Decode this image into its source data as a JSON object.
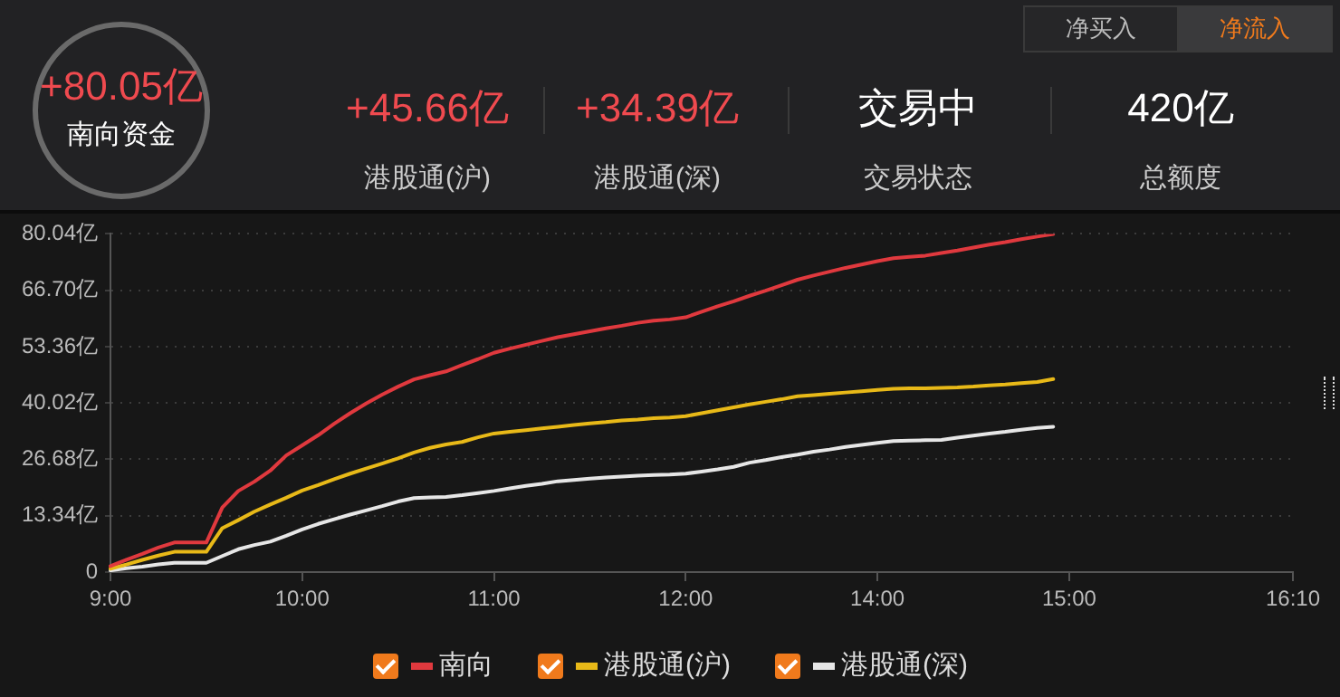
{
  "chart_data": {
    "type": "line",
    "annotations": [
      "+80.05亿",
      "南向资金",
      "+45.66亿",
      "港股通(沪)",
      "+34.39亿",
      "港股通(深)",
      "交易中",
      "交易状态",
      "420亿",
      "总额度",
      "净买入",
      "净流入"
    ],
    "categories": [
      "9:00",
      null,
      null,
      null,
      null,
      null,
      null,
      null,
      null,
      null,
      null,
      null,
      "10:00",
      null,
      null,
      null,
      null,
      null,
      null,
      null,
      null,
      null,
      null,
      null,
      "11:00",
      null,
      null,
      null,
      null,
      null,
      null,
      null,
      null,
      null,
      null,
      null,
      "12:00",
      null,
      null,
      null,
      null,
      null,
      null,
      null,
      null,
      null,
      null,
      null,
      "14:00",
      null,
      null,
      null,
      null,
      null,
      null,
      null,
      null,
      null,
      null,
      null,
      "15:00",
      null,
      null,
      null,
      null,
      null,
      null,
      null,
      null,
      null,
      null,
      null,
      null,
      null,
      "16:10"
    ],
    "ylim": [
      0,
      80.04
    ],
    "yticks": [
      0,
      {
        "value": 13.34,
        "label": "13.34亿"
      },
      {
        "value": 26.68,
        "label": "26.68亿"
      },
      {
        "value": 40.02,
        "label": "40.02亿"
      },
      {
        "value": 53.36,
        "label": "53.36亿"
      },
      {
        "value": 66.7,
        "label": "66.70亿"
      },
      {
        "value": 80.04,
        "label": "80.04亿"
      }
    ],
    "grid": "y",
    "legend": "bottom",
    "marker": "none",
    "line_style": "solid",
    "series": [
      {
        "name": "南向",
        "color": "#e0393e",
        "values": [
          1.4,
          2.9,
          4.3,
          5.8,
          7.0,
          7.0,
          7.0,
          15.3,
          19.2,
          21.4,
          24.0,
          27.6,
          30.0,
          32.4,
          35.1,
          37.6,
          39.9,
          42.0,
          43.9,
          45.6,
          46.6,
          47.5,
          49.0,
          50.4,
          51.9,
          52.9,
          53.8,
          54.7,
          55.6,
          56.3,
          57.0,
          57.7,
          58.3,
          59.0,
          59.5,
          59.8,
          60.3,
          61.6,
          62.9,
          64.1,
          65.4,
          66.6,
          67.9,
          69.2,
          70.2,
          71.1,
          72.0,
          72.8,
          73.6,
          74.3,
          74.6,
          74.9,
          75.5,
          76.1,
          76.8,
          77.5,
          78.1,
          78.8,
          79.4,
          80.0,
          null,
          null,
          null,
          null,
          null,
          null,
          null,
          null,
          null,
          null,
          null,
          null,
          null,
          null,
          null
        ]
      },
      {
        "name": "港股通(沪)",
        "color": "#e8b918",
        "values": [
          0.8,
          1.8,
          2.9,
          3.9,
          4.8,
          4.8,
          4.8,
          10.4,
          12.3,
          14.3,
          16.0,
          17.6,
          19.3,
          20.6,
          22.0,
          23.3,
          24.5,
          25.7,
          26.9,
          28.3,
          29.4,
          30.2,
          30.8,
          31.9,
          32.8,
          33.2,
          33.6,
          34.0,
          34.4,
          34.8,
          35.2,
          35.5,
          35.9,
          36.1,
          36.4,
          36.6,
          36.9,
          37.6,
          38.3,
          39.0,
          39.7,
          40.3,
          40.9,
          41.6,
          41.9,
          42.2,
          42.5,
          42.8,
          43.1,
          43.4,
          43.5,
          43.5,
          43.6,
          43.7,
          43.9,
          44.2,
          44.4,
          44.7,
          45.0,
          45.7,
          null,
          null,
          null,
          null,
          null,
          null,
          null,
          null,
          null,
          null,
          null,
          null,
          null,
          null,
          null
        ]
      },
      {
        "name": "港股通(深)",
        "color": "#e6e6e6",
        "values": [
          0.4,
          0.9,
          1.3,
          1.8,
          2.2,
          2.2,
          2.2,
          3.8,
          5.4,
          6.4,
          7.2,
          8.6,
          10.1,
          11.4,
          12.5,
          13.6,
          14.6,
          15.6,
          16.7,
          17.5,
          17.7,
          17.8,
          18.2,
          18.7,
          19.2,
          19.8,
          20.4,
          20.9,
          21.5,
          21.8,
          22.1,
          22.4,
          22.6,
          22.8,
          23.0,
          23.1,
          23.3,
          23.8,
          24.3,
          24.9,
          25.9,
          26.5,
          27.2,
          27.8,
          28.5,
          29.0,
          29.6,
          30.1,
          30.6,
          31.0,
          31.1,
          31.2,
          31.3,
          31.8,
          32.3,
          32.8,
          33.2,
          33.7,
          34.1,
          34.4,
          null,
          null,
          null,
          null,
          null,
          null,
          null,
          null,
          null,
          null,
          null,
          null,
          null,
          null,
          null
        ]
      }
    ]
  }
}
